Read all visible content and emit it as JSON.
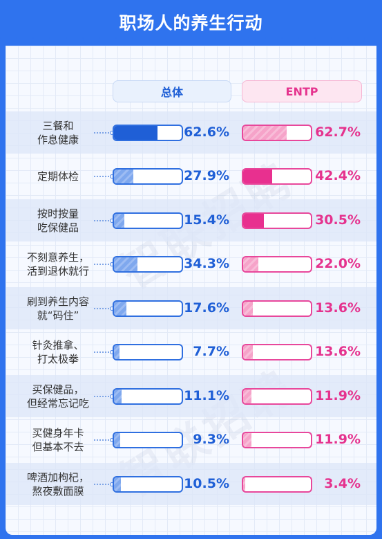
{
  "title": "职场人的养生行动",
  "watermark": "智联招聘",
  "chart_data": {
    "type": "bar",
    "series": [
      {
        "name": "总体",
        "values": [
          62.6,
          27.9,
          15.4,
          34.3,
          17.6,
          7.7,
          11.1,
          9.3,
          10.5
        ]
      },
      {
        "name": "ENTP",
        "values": [
          62.7,
          42.4,
          30.5,
          22.0,
          13.6,
          13.6,
          11.9,
          11.9,
          3.4
        ]
      }
    ],
    "categories": [
      [
        "三餐和",
        "作息健康"
      ],
      [
        "定期体检"
      ],
      [
        "按时按量",
        "吃保健品"
      ],
      [
        "不刻意养生，",
        "活到退休就行"
      ],
      [
        "刷到养生内容",
        "就“码住”"
      ],
      [
        "针灸推拿、",
        "打太极拳"
      ],
      [
        "买保健品，",
        "但经常忘记吃"
      ],
      [
        "买健身年卡",
        "但基本不去"
      ],
      [
        "啤酒加枸杞，",
        "熬夜敷面膜"
      ]
    ],
    "value_labels": {
      "total": [
        "62.6%",
        "27.9%",
        "15.4%",
        "34.3%",
        "17.6%",
        "7.7%",
        "11.1%",
        "9.3%",
        "10.5%"
      ],
      "entp": [
        "62.7%",
        "42.4%",
        "30.5%",
        "22.0%",
        "13.6%",
        "13.6%",
        "11.9%",
        "11.9%",
        "3.4%"
      ]
    },
    "xlim": [
      0,
      100
    ]
  },
  "colors": {
    "blue_dark": "#1f5fd6",
    "blue_light": "#7fa8ee",
    "pink_dark": "#e8308f",
    "pink_light": "#f6a3c9"
  }
}
